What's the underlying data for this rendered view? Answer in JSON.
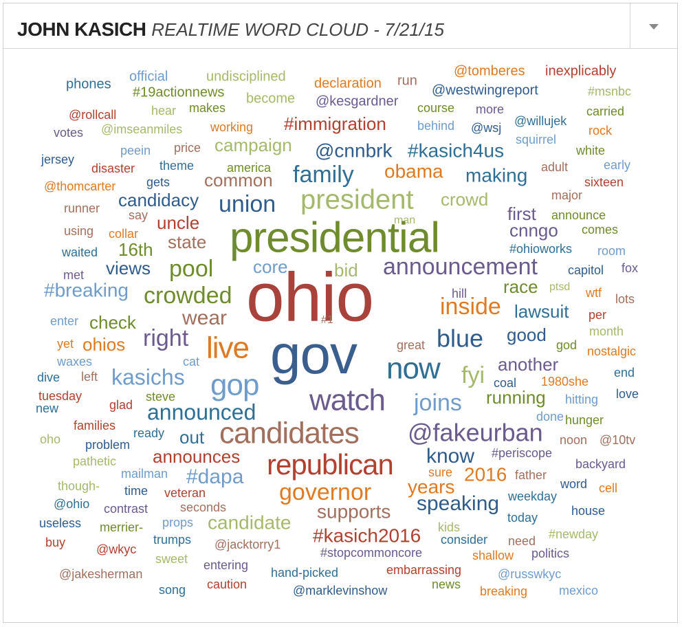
{
  "header": {
    "title": "JOHN KASICH",
    "subtitle": "REALTIME WORD CLOUD - 7/21/15"
  },
  "chart_data": {
    "type": "wordcloud",
    "words": [
      {
        "text": "phones",
        "weight": 20,
        "color": "#2f6f96"
      },
      {
        "text": "official",
        "weight": 20,
        "color": "#6f9ccb"
      },
      {
        "text": "undisciplined",
        "weight": 20,
        "color": "#a5b96b"
      },
      {
        "text": "declaration",
        "weight": 20,
        "color": "#e07a22"
      },
      {
        "text": "run",
        "weight": 20,
        "color": "#a26f5d"
      },
      {
        "text": "@tomberes",
        "weight": 20,
        "color": "#e07a22"
      },
      {
        "text": "inexplicably",
        "weight": 20,
        "color": "#b3402f"
      },
      {
        "text": "#19actionnews",
        "weight": 20,
        "color": "#6e8c2a"
      },
      {
        "text": "become",
        "weight": 20,
        "color": "#a5b96b"
      },
      {
        "text": "@kesgardner",
        "weight": 20,
        "color": "#6b5a8e"
      },
      {
        "text": "@westwingreport",
        "weight": 20,
        "color": "#2f5c8d"
      },
      {
        "text": "#msnbc",
        "weight": 18,
        "color": "#a5b96b"
      },
      {
        "text": "@rollcall",
        "weight": 18,
        "color": "#b3402f"
      },
      {
        "text": "hear",
        "weight": 18,
        "color": "#a5b96b"
      },
      {
        "text": "makes",
        "weight": 18,
        "color": "#6e8c2a"
      },
      {
        "text": "course",
        "weight": 18,
        "color": "#6e8c2a"
      },
      {
        "text": "more",
        "weight": 18,
        "color": "#6b5a8e"
      },
      {
        "text": "carried",
        "weight": 18,
        "color": "#6e8c2a"
      },
      {
        "text": "votes",
        "weight": 18,
        "color": "#6b5a8e"
      },
      {
        "text": "@imseanmiles",
        "weight": 18,
        "color": "#a5b96b"
      },
      {
        "text": "working",
        "weight": 18,
        "color": "#e07a22"
      },
      {
        "text": "#immigration",
        "weight": 26,
        "color": "#b3402f"
      },
      {
        "text": "behind",
        "weight": 18,
        "color": "#6f9ccb"
      },
      {
        "text": "@wsj",
        "weight": 18,
        "color": "#2f5c8d"
      },
      {
        "text": "@willujek",
        "weight": 18,
        "color": "#2f6f96"
      },
      {
        "text": "rock",
        "weight": 18,
        "color": "#e07a22"
      },
      {
        "text": "peein",
        "weight": 18,
        "color": "#6f9ccb"
      },
      {
        "text": "price",
        "weight": 18,
        "color": "#a26f5d"
      },
      {
        "text": "campaign",
        "weight": 26,
        "color": "#a5b96b"
      },
      {
        "text": "@cnnbrk",
        "weight": 28,
        "color": "#2f5c8d"
      },
      {
        "text": "#kasich4us",
        "weight": 28,
        "color": "#2f6f96"
      },
      {
        "text": "squirrel",
        "weight": 18,
        "color": "#6f9ccb"
      },
      {
        "text": "white",
        "weight": 18,
        "color": "#6e8c2a"
      },
      {
        "text": "jersey",
        "weight": 18,
        "color": "#2f5c8d"
      },
      {
        "text": "disaster",
        "weight": 18,
        "color": "#b3402f"
      },
      {
        "text": "theme",
        "weight": 18,
        "color": "#2f6f96"
      },
      {
        "text": "america",
        "weight": 18,
        "color": "#6e8c2a"
      },
      {
        "text": "family",
        "weight": 34,
        "color": "#2f6f96"
      },
      {
        "text": "obama",
        "weight": 28,
        "color": "#e07a22"
      },
      {
        "text": "making",
        "weight": 28,
        "color": "#2f6f96"
      },
      {
        "text": "adult",
        "weight": 18,
        "color": "#a26f5d"
      },
      {
        "text": "early",
        "weight": 18,
        "color": "#6f9ccb"
      },
      {
        "text": "@thomcarter",
        "weight": 18,
        "color": "#e07a22"
      },
      {
        "text": "gets",
        "weight": 18,
        "color": "#2f5c8d"
      },
      {
        "text": "common",
        "weight": 26,
        "color": "#a26f5d"
      },
      {
        "text": "sixteen",
        "weight": 18,
        "color": "#b3402f"
      },
      {
        "text": "runner",
        "weight": 18,
        "color": "#a26f5d"
      },
      {
        "text": "president",
        "weight": 40,
        "color": "#a5b96b"
      },
      {
        "text": "crowd",
        "weight": 26,
        "color": "#a5b96b"
      },
      {
        "text": "major",
        "weight": 18,
        "color": "#a26f5d"
      },
      {
        "text": "candidacy",
        "weight": 26,
        "color": "#2f5c8d"
      },
      {
        "text": "union",
        "weight": 34,
        "color": "#2f5c8d"
      },
      {
        "text": "say",
        "weight": 18,
        "color": "#a26f5d"
      },
      {
        "text": "first",
        "weight": 26,
        "color": "#6b5a8e"
      },
      {
        "text": "announce",
        "weight": 18,
        "color": "#6e8c2a"
      },
      {
        "text": "uncle",
        "weight": 26,
        "color": "#b3402f"
      },
      {
        "text": "man",
        "weight": 16,
        "color": "#a5b96b"
      },
      {
        "text": "using",
        "weight": 18,
        "color": "#a26f5d"
      },
      {
        "text": "collar",
        "weight": 18,
        "color": "#e07a22"
      },
      {
        "text": "presidential",
        "weight": 62,
        "color": "#6e8b2e"
      },
      {
        "text": "cnngo",
        "weight": 26,
        "color": "#6b5a8e"
      },
      {
        "text": "comes",
        "weight": 18,
        "color": "#6e8c2a"
      },
      {
        "text": "state",
        "weight": 26,
        "color": "#a26f5d"
      },
      {
        "text": "waited",
        "weight": 18,
        "color": "#2f6f96"
      },
      {
        "text": "16th",
        "weight": 26,
        "color": "#6e8c2a"
      },
      {
        "text": "#ohioworks",
        "weight": 18,
        "color": "#2f6f96"
      },
      {
        "text": "room",
        "weight": 18,
        "color": "#6f9ccb"
      },
      {
        "text": "views",
        "weight": 26,
        "color": "#2f5c8d"
      },
      {
        "text": "pool",
        "weight": 34,
        "color": "#6e8c2a"
      },
      {
        "text": "core",
        "weight": 26,
        "color": "#6f9ccb"
      },
      {
        "text": "bid",
        "weight": 26,
        "color": "#a5b96b"
      },
      {
        "text": "announcement",
        "weight": 34,
        "color": "#6b5a8e"
      },
      {
        "text": "met",
        "weight": 18,
        "color": "#6b5a8e"
      },
      {
        "text": "capitol",
        "weight": 18,
        "color": "#2f5c8d"
      },
      {
        "text": "fox",
        "weight": 18,
        "color": "#6b5a8e"
      },
      {
        "text": "#breaking",
        "weight": 28,
        "color": "#6f9ccb"
      },
      {
        "text": "crowded",
        "weight": 34,
        "color": "#6e8c2a"
      },
      {
        "text": "ohio",
        "weight": 100,
        "color": "#a8423a"
      },
      {
        "text": "race",
        "weight": 26,
        "color": "#6e8c2a"
      },
      {
        "text": "ptsd",
        "weight": 16,
        "color": "#a5b96b"
      },
      {
        "text": "hill",
        "weight": 18,
        "color": "#6b5a8e"
      },
      {
        "text": "wtf",
        "weight": 18,
        "color": "#e07a22"
      },
      {
        "text": "lots",
        "weight": 18,
        "color": "#a26f5d"
      },
      {
        "text": "inside",
        "weight": 34,
        "color": "#e07a22"
      },
      {
        "text": "lawsuit",
        "weight": 26,
        "color": "#2f6f96"
      },
      {
        "text": "per",
        "weight": 18,
        "color": "#b3402f"
      },
      {
        "text": "enter",
        "weight": 18,
        "color": "#6f9ccb"
      },
      {
        "text": "wear",
        "weight": 30,
        "color": "#a26f5d"
      },
      {
        "text": "#1",
        "weight": 16,
        "color": "#a26f5d"
      },
      {
        "text": "check",
        "weight": 26,
        "color": "#6e8c2a"
      },
      {
        "text": "month",
        "weight": 18,
        "color": "#a5b96b"
      },
      {
        "text": "yet",
        "weight": 18,
        "color": "#e07a22"
      },
      {
        "text": "ohios",
        "weight": 26,
        "color": "#e07a22"
      },
      {
        "text": "right",
        "weight": 34,
        "color": "#6b5a8e"
      },
      {
        "text": "live",
        "weight": 44,
        "color": "#e07a22"
      },
      {
        "text": "gov",
        "weight": 80,
        "color": "#3a5f8f"
      },
      {
        "text": "blue",
        "weight": 36,
        "color": "#2f5c8d"
      },
      {
        "text": "good",
        "weight": 26,
        "color": "#2f5c8d"
      },
      {
        "text": "great",
        "weight": 18,
        "color": "#a26f5d"
      },
      {
        "text": "god",
        "weight": 18,
        "color": "#6e8c2a"
      },
      {
        "text": "waxes",
        "weight": 18,
        "color": "#6f9ccb"
      },
      {
        "text": "nostalgic",
        "weight": 18,
        "color": "#e07a22"
      },
      {
        "text": "cat",
        "weight": 18,
        "color": "#6f9ccb"
      },
      {
        "text": "now",
        "weight": 44,
        "color": "#2f6f96"
      },
      {
        "text": "fyi",
        "weight": 34,
        "color": "#a5b96b"
      },
      {
        "text": "another",
        "weight": 26,
        "color": "#6b5a8e"
      },
      {
        "text": "dive",
        "weight": 18,
        "color": "#2f6f96"
      },
      {
        "text": "left",
        "weight": 18,
        "color": "#a26f5d"
      },
      {
        "text": "kasichs",
        "weight": 32,
        "color": "#6f9ccb"
      },
      {
        "text": "gop",
        "weight": 44,
        "color": "#6f9ccb"
      },
      {
        "text": "coal",
        "weight": 18,
        "color": "#2f5c8d"
      },
      {
        "text": "1980she",
        "weight": 18,
        "color": "#e07a22"
      },
      {
        "text": "end",
        "weight": 18,
        "color": "#2f6f96"
      },
      {
        "text": "tuesday",
        "weight": 18,
        "color": "#b3402f"
      },
      {
        "text": "steve",
        "weight": 18,
        "color": "#6e8c2a"
      },
      {
        "text": "watch",
        "weight": 44,
        "color": "#6b5a8e"
      },
      {
        "text": "joins",
        "weight": 34,
        "color": "#6f9ccb"
      },
      {
        "text": "running",
        "weight": 26,
        "color": "#6e8c2a"
      },
      {
        "text": "hitting",
        "weight": 18,
        "color": "#6f9ccb"
      },
      {
        "text": "love",
        "weight": 18,
        "color": "#2f5c8d"
      },
      {
        "text": "glad",
        "weight": 18,
        "color": "#b3402f"
      },
      {
        "text": "new",
        "weight": 18,
        "color": "#2f6f96"
      },
      {
        "text": "announced",
        "weight": 32,
        "color": "#2f6f96"
      },
      {
        "text": "done",
        "weight": 18,
        "color": "#6f9ccb"
      },
      {
        "text": "families",
        "weight": 18,
        "color": "#b3402f"
      },
      {
        "text": "hunger",
        "weight": 18,
        "color": "#6e8c2a"
      },
      {
        "text": "oho",
        "weight": 18,
        "color": "#a5b96b"
      },
      {
        "text": "ready",
        "weight": 18,
        "color": "#2f6f96"
      },
      {
        "text": "out",
        "weight": 26,
        "color": "#2f6f96"
      },
      {
        "text": "candidates",
        "weight": 44,
        "color": "#a26f5d"
      },
      {
        "text": "@fakeurban",
        "weight": 36,
        "color": "#6b5a8e"
      },
      {
        "text": "problem",
        "weight": 18,
        "color": "#2f5c8d"
      },
      {
        "text": "noon",
        "weight": 18,
        "color": "#a26f5d"
      },
      {
        "text": "@10tv",
        "weight": 18,
        "color": "#a26f5d"
      },
      {
        "text": "announces",
        "weight": 26,
        "color": "#b3402f"
      },
      {
        "text": "know",
        "weight": 30,
        "color": "#2f5c8d"
      },
      {
        "text": "#periscope",
        "weight": 18,
        "color": "#6b5a8e"
      },
      {
        "text": "pathetic",
        "weight": 18,
        "color": "#a5b96b"
      },
      {
        "text": "republican",
        "weight": 42,
        "color": "#b3402f"
      },
      {
        "text": "backyard",
        "weight": 18,
        "color": "#6b5a8e"
      },
      {
        "text": "mailman",
        "weight": 18,
        "color": "#6f9ccb"
      },
      {
        "text": "#dapa",
        "weight": 30,
        "color": "#6f9ccb"
      },
      {
        "text": "sure",
        "weight": 18,
        "color": "#e07a22"
      },
      {
        "text": "2016",
        "weight": 28,
        "color": "#e07a22"
      },
      {
        "text": "father",
        "weight": 18,
        "color": "#a26f5d"
      },
      {
        "text": "though-",
        "weight": 18,
        "color": "#a5b96b"
      },
      {
        "text": "years",
        "weight": 28,
        "color": "#e07a22"
      },
      {
        "text": "word",
        "weight": 18,
        "color": "#2f5c8d"
      },
      {
        "text": "cell",
        "weight": 18,
        "color": "#e07a22"
      },
      {
        "text": "time",
        "weight": 18,
        "color": "#2f5c8d"
      },
      {
        "text": "veteran",
        "weight": 18,
        "color": "#b3402f"
      },
      {
        "text": "governor",
        "weight": 34,
        "color": "#e07a22"
      },
      {
        "text": "weekday",
        "weight": 18,
        "color": "#2f6f96"
      },
      {
        "text": "@ohio",
        "weight": 18,
        "color": "#2f6f96"
      },
      {
        "text": "speaking",
        "weight": 30,
        "color": "#2f5c8d"
      },
      {
        "text": "seconds",
        "weight": 18,
        "color": "#a26f5d"
      },
      {
        "text": "contrast",
        "weight": 18,
        "color": "#6b5a8e"
      },
      {
        "text": "house",
        "weight": 18,
        "color": "#2f5c8d"
      },
      {
        "text": "supports",
        "weight": 28,
        "color": "#a26f5d"
      },
      {
        "text": "useless",
        "weight": 18,
        "color": "#2f5c8d"
      },
      {
        "text": "today",
        "weight": 18,
        "color": "#2f6f96"
      },
      {
        "text": "props",
        "weight": 18,
        "color": "#6f9ccb"
      },
      {
        "text": "candidate",
        "weight": 28,
        "color": "#a5b96b"
      },
      {
        "text": "merrier-",
        "weight": 18,
        "color": "#6e8c2a"
      },
      {
        "text": "kids",
        "weight": 18,
        "color": "#a5b96b"
      },
      {
        "text": "#kasich2016",
        "weight": 28,
        "color": "#b3402f"
      },
      {
        "text": "trumps",
        "weight": 18,
        "color": "#2f6f96"
      },
      {
        "text": "buy",
        "weight": 18,
        "color": "#b3402f"
      },
      {
        "text": "consider",
        "weight": 18,
        "color": "#2f6f96"
      },
      {
        "text": "need",
        "weight": 18,
        "color": "#a26f5d"
      },
      {
        "text": "#newday",
        "weight": 18,
        "color": "#a5b96b"
      },
      {
        "text": "@wkyc",
        "weight": 18,
        "color": "#b3402f"
      },
      {
        "text": "@jacktorry1",
        "weight": 18,
        "color": "#a26f5d"
      },
      {
        "text": "shallow",
        "weight": 18,
        "color": "#e07a22"
      },
      {
        "text": "politics",
        "weight": 18,
        "color": "#6b5a8e"
      },
      {
        "text": "#stopcommoncore",
        "weight": 18,
        "color": "#6b5a8e"
      },
      {
        "text": "sweet",
        "weight": 18,
        "color": "#a5b96b"
      },
      {
        "text": "entering",
        "weight": 18,
        "color": "#6b5a8e"
      },
      {
        "text": "@jakesherman",
        "weight": 18,
        "color": "#a26f5d"
      },
      {
        "text": "hand-picked",
        "weight": 18,
        "color": "#2f6f96"
      },
      {
        "text": "embarrassing",
        "weight": 18,
        "color": "#b3402f"
      },
      {
        "text": "@russwkyc",
        "weight": 18,
        "color": "#6f9ccb"
      },
      {
        "text": "caution",
        "weight": 18,
        "color": "#b3402f"
      },
      {
        "text": "news",
        "weight": 18,
        "color": "#6e8c2a"
      },
      {
        "text": "song",
        "weight": 18,
        "color": "#2f6f96"
      },
      {
        "text": "@marklevinshow",
        "weight": 18,
        "color": "#2f5c8d"
      },
      {
        "text": "breaking",
        "weight": 18,
        "color": "#e07a22"
      },
      {
        "text": "mexico",
        "weight": 18,
        "color": "#6f9ccb"
      }
    ]
  }
}
